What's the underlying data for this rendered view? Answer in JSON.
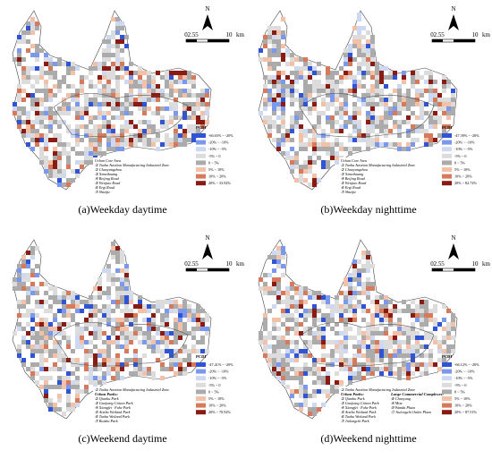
{
  "pcdi_colors": [
    "#2f55d4",
    "#7a98ee",
    "#cdd9f3",
    "#dcdcdc",
    "#ababab",
    "#f2c1a8",
    "#d77a5c",
    "#8a1b12"
  ],
  "panels": [
    {
      "caption": "(a)Weekday daytime",
      "north": "N",
      "scale": [
        "0",
        "2.5",
        "5",
        "10",
        "km"
      ],
      "legend_title": "PCDI",
      "legend": [
        "-66.65% ~ -20%",
        "-20% ~ -10%",
        "-10% ~ -5%",
        "-5% ~ 0",
        "0 ~ 5%",
        "5% ~ 10%",
        "10% ~ 20%",
        "20% ~ 33.92%"
      ],
      "areas": [
        "Urban Core Area",
        "① Taohu Aviation Manufacturing Industrial Zone",
        "② Chaoyangzhou",
        "③ Ximaihuang",
        "④ Beijing Road",
        "⑤ Wenjiao Road",
        "⑥ Ergi Road",
        "⑦ Shizijie"
      ]
    },
    {
      "caption": "(b)Weekday nighttime",
      "north": "N",
      "scale": [
        "0",
        "2.5",
        "5",
        "10",
        "km"
      ],
      "legend_title": "PCDI",
      "legend": [
        "-47.39% ~ -20%",
        "-20% ~ -10%",
        "-10% ~ -5%",
        "-5% ~ 0",
        "0 ~ 5%",
        "5% ~ 10%",
        "10% ~ 20%",
        "20% ~ 82.72%"
      ],
      "areas": [
        "Urban Core Area",
        "① Taohu Aviation Manufacturing Industrial Zone",
        "② Chaoyangzhou",
        "③ Ximaihuang",
        "④ Beijing Road",
        "⑤ Wenjiao Road",
        "⑥ Ergi Road",
        "⑦ Shizijie"
      ]
    },
    {
      "caption": "(c)Weekend daytime",
      "north": "N",
      "scale": [
        "0",
        "2.5",
        "5",
        "10",
        "km"
      ],
      "legend_title": "PCDI",
      "legend": [
        "-47.41% ~ -20%",
        "-20% ~ -10%",
        "-10% ~ -5%",
        "-5% ~ 0",
        "0 ~ 5%",
        "5% ~ 10%",
        "10% ~ 20%",
        "20% ~ 70.92%"
      ],
      "areas": [
        "① Taohu Aviation Manufacturing Industrial Zone",
        "Urban Parks:",
        "② Qianhu Park",
        "③ Gaojiang Citizen Park",
        "④ Xiangfei · Fuhe Park",
        "⑤ Aixiba Wetland Park",
        "⑥ Taohu Wetland Park",
        "⑦ Ruishu Park"
      ]
    },
    {
      "caption": "(d)Weekend nighttime",
      "north": "N",
      "scale": [
        "0",
        "2.5",
        "5",
        "10",
        "km"
      ],
      "legend_title": "PCDI",
      "legend": [
        "-66.12% ~ -20%",
        "-20% ~ -10%",
        "-10% ~ -5%",
        "-5% ~ 0",
        "0 ~ 5%",
        "5% ~ 10%",
        "10% ~ 20%",
        "20% ~ 87.51%"
      ],
      "areas": [
        "① Taohu Aviation Manufacturing Industrial Zone",
        "Urban Parks:",
        "② Qianhu Park",
        "③ Gaojiang Citizen Park",
        "④ Xiangfei · Fuhe Park",
        "⑤ Aixiba Wetland Park",
        "⑥ Taohu Wetland Park",
        "⑦ Jiulongchi Park"
      ],
      "areas2": [
        "Large Commercial Complexes:",
        "⑧ Chaoyang",
        "⑨ Mixc",
        "⑩ Wanda Plaza",
        "⑪ Jiulongchi Outlet Plaza"
      ]
    }
  ]
}
